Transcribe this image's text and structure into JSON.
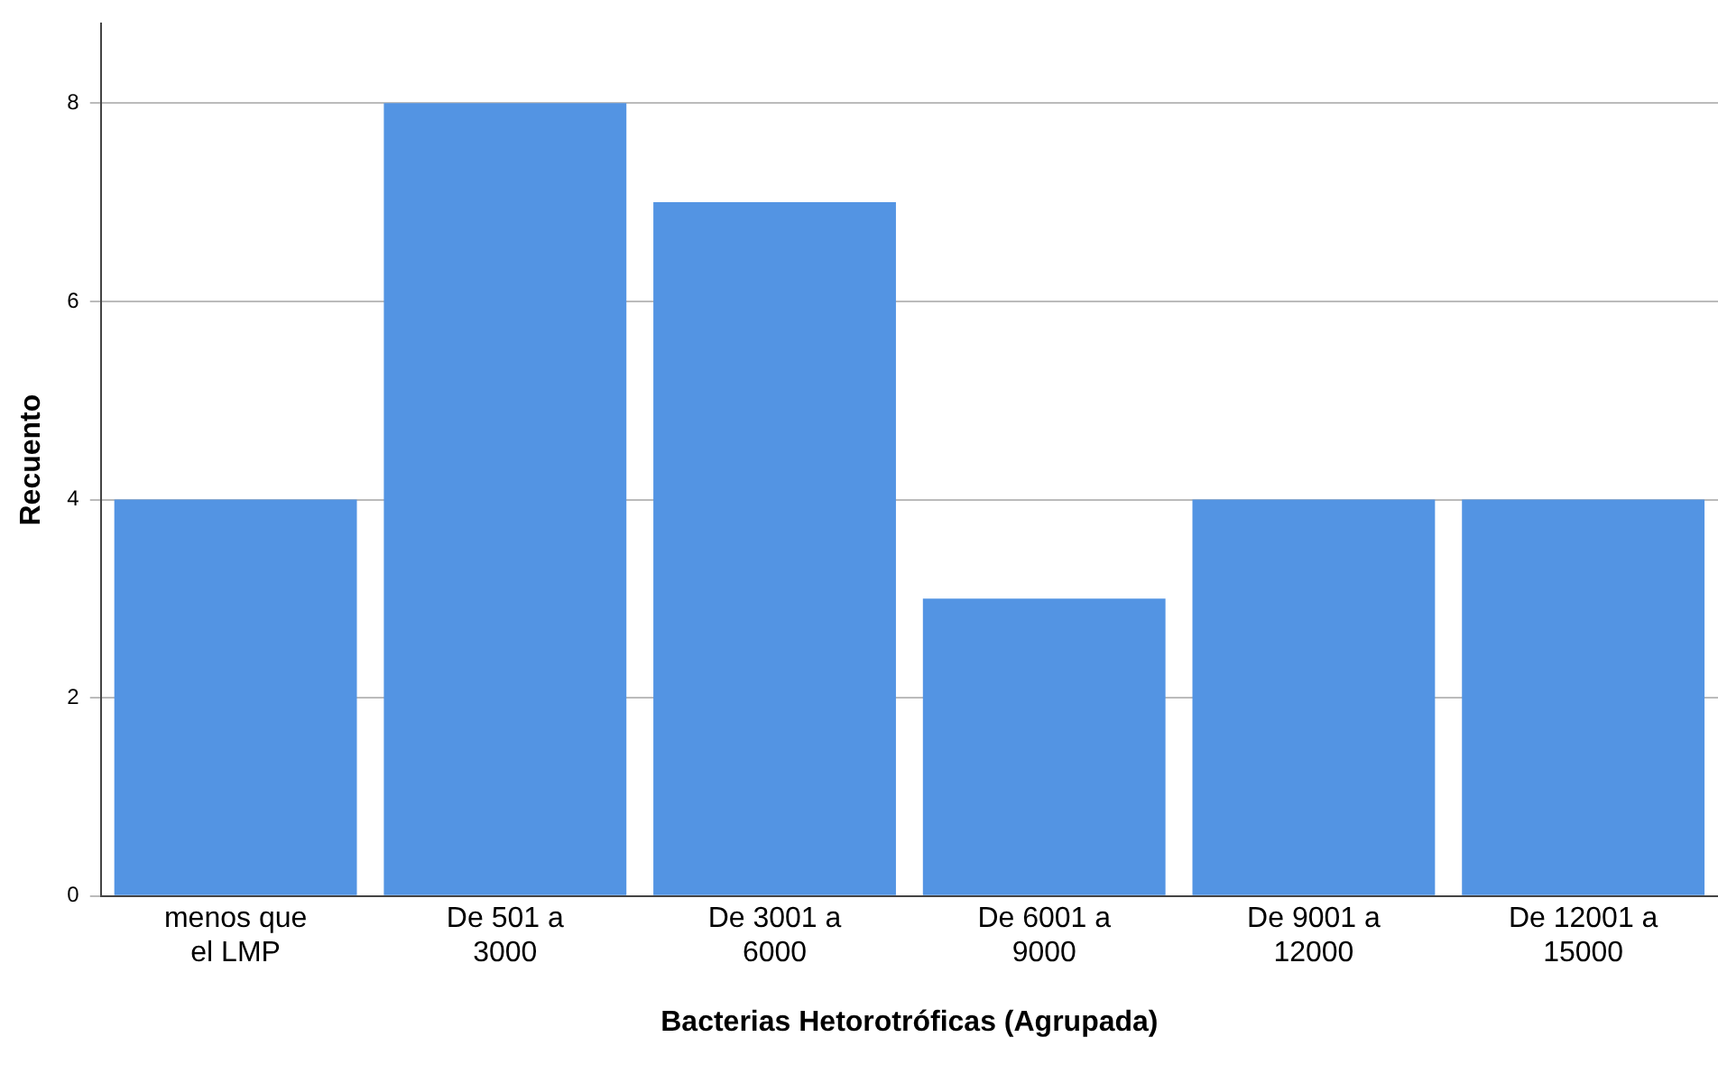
{
  "chart_data": {
    "type": "bar",
    "xlabel": "Bacterias Hetorotróficas (Agrupada)",
    "ylabel": "Recuento",
    "categories": [
      "menos que el LMP",
      "De 501 a 3000",
      "De 3001 a 6000",
      "De 6001 a 9000",
      "De 9001 a 12000",
      "De 12001 a 15000"
    ],
    "values": [
      4,
      8,
      7,
      3,
      4,
      4
    ],
    "color": "#5394e3",
    "ylim": [
      0,
      8.8
    ],
    "yticks": [
      0,
      2,
      4,
      6,
      8
    ],
    "grid": "y",
    "legend": false
  }
}
